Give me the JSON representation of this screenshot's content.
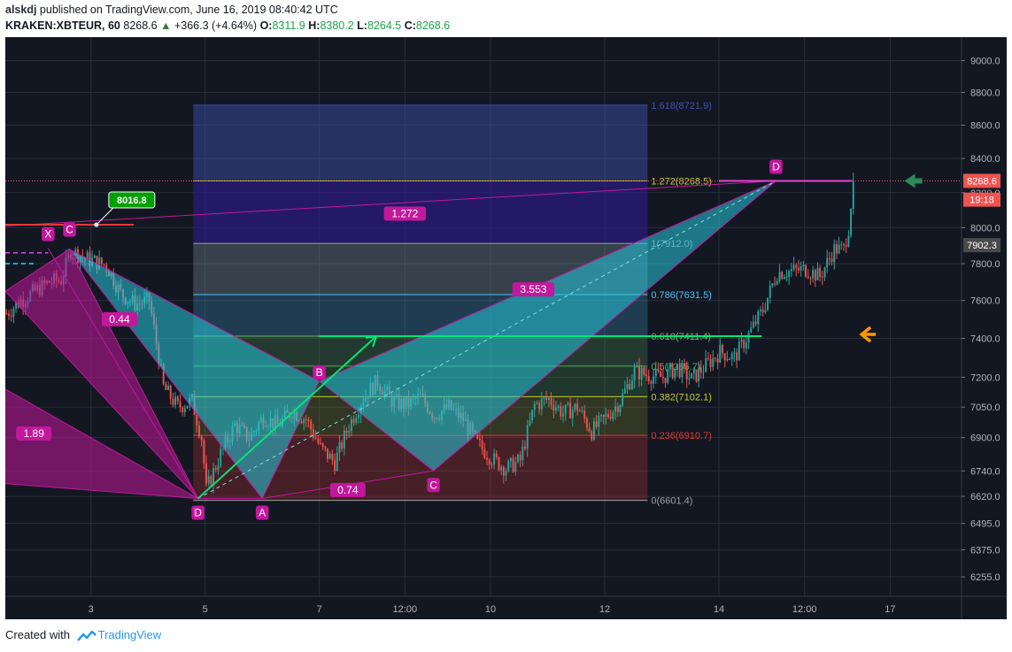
{
  "header": {
    "author": "alskdj",
    "published_text": "published on TradingView.com, June 16, 2019 08:40:42 UTC",
    "symbol_interval": "KRAKEN:XBTEUR, 60",
    "last_price": "8268.6",
    "change": "+366.3 (+4.64%)",
    "o_label": "O:",
    "o_value": "8311.9",
    "h_label": "H:",
    "h_value": "8380.2",
    "l_label": "L:",
    "l_value": "8264.5",
    "c_label": "C:",
    "c_value": "8268.6"
  },
  "footer": {
    "created_with": "Created with",
    "brand": "TradingView"
  },
  "colors": {
    "background": "#131722",
    "grid": "#2a2e39",
    "bull": "#26a69a",
    "bear": "#ef5350",
    "pattern_magenta": "#c2189b",
    "pattern_cyan": "#26c6da",
    "green_line": "#00e676",
    "orange_arrow": "#ff9800",
    "green_arrow": "#2e8b57"
  },
  "chart_data": {
    "type": "candlestick",
    "symbol": "KRAKEN:XBTEUR",
    "interval": "60",
    "scale": "log",
    "ylim": [
      6170,
      9150
    ],
    "y_ticks": [
      {
        "label": "9000.0",
        "value": 9000
      },
      {
        "label": "8800.0",
        "value": 8800
      },
      {
        "label": "8600.0",
        "value": 8600
      },
      {
        "label": "8400.0",
        "value": 8400
      },
      {
        "label": "8200.0",
        "value": 8200
      },
      {
        "label": "8000.0",
        "value": 8000
      },
      {
        "label": "7800.0",
        "value": 7800
      },
      {
        "label": "7600.0",
        "value": 7600
      },
      {
        "label": "7400.0",
        "value": 7400
      },
      {
        "label": "7200.0",
        "value": 7200
      },
      {
        "label": "7050.0",
        "value": 7050
      },
      {
        "label": "6900.0",
        "value": 6900
      },
      {
        "label": "6740.0",
        "value": 6740
      },
      {
        "label": "6620.0",
        "value": 6620
      },
      {
        "label": "6495.0",
        "value": 6495
      },
      {
        "label": "6375.0",
        "value": 6375
      },
      {
        "label": "6255.0",
        "value": 6255
      }
    ],
    "x_range": [
      "Jun 1 12:00",
      "Jun 18 06:00"
    ],
    "x_ticks": [
      {
        "label": "3",
        "t": "Jun 3 00:00"
      },
      {
        "label": "5",
        "t": "Jun 5 00:00"
      },
      {
        "label": "7",
        "t": "Jun 7 00:00"
      },
      {
        "label": "12:00",
        "t": "Jun 8 12:00"
      },
      {
        "label": "10",
        "t": "Jun 10 00:00"
      },
      {
        "label": "12",
        "t": "Jun 12 00:00"
      },
      {
        "label": "14",
        "t": "Jun 14 00:00"
      },
      {
        "label": "12:00",
        "t": "Jun 15 12:00"
      },
      {
        "label": "17",
        "t": "Jun 17 00:00"
      }
    ],
    "price_path": [
      [
        "Jun 1 12:00",
        7530
      ],
      [
        "Jun 1 18:00",
        7600
      ],
      [
        "Jun 2 00:00",
        7650
      ],
      [
        "Jun 2 06:00",
        7700
      ],
      [
        "Jun 2 11:00",
        7710
      ],
      [
        "Jun 2 15:00",
        7870
      ],
      [
        "Jun 2 21:00",
        7830
      ],
      [
        "Jun 3 06:00",
        7790
      ],
      [
        "Jun 3 12:00",
        7640
      ],
      [
        "Jun 3 18:00",
        7580
      ],
      [
        "Jun 4 00:00",
        7600
      ],
      [
        "Jun 4 06:00",
        7150
      ],
      [
        "Jun 4 12:00",
        7050
      ],
      [
        "Jun 4 18:00",
        7080
      ],
      [
        "Jun 4 22:00",
        6900
      ],
      [
        "Jun 5 00:00",
        6650
      ],
      [
        "Jun 5 06:00",
        6820
      ],
      [
        "Jun 5 12:00",
        6960
      ],
      [
        "Jun 5 18:00",
        6900
      ],
      [
        "Jun 6 00:00",
        7000
      ],
      [
        "Jun 6 06:00",
        6960
      ],
      [
        "Jun 6 12:00",
        7030
      ],
      [
        "Jun 6 18:00",
        6990
      ],
      [
        "Jun 7 00:00",
        6850
      ],
      [
        "Jun 7 06:00",
        6780
      ],
      [
        "Jun 7 12:00",
        6960
      ],
      [
        "Jun 7 18:00",
        7100
      ],
      [
        "Jun 8 00:00",
        7180
      ],
      [
        "Jun 8 06:00",
        7080
      ],
      [
        "Jun 8 12:00",
        7060
      ],
      [
        "Jun 8 18:00",
        7100
      ],
      [
        "Jun 9 00:00",
        7010
      ],
      [
        "Jun 9 06:00",
        7050
      ],
      [
        "Jun 9 12:00",
        6990
      ],
      [
        "Jun 9 18:00",
        6870
      ],
      [
        "Jun 10 00:00",
        6800
      ],
      [
        "Jun 10 06:00",
        6750
      ],
      [
        "Jun 10 12:00",
        6790
      ],
      [
        "Jun 10 18:00",
        7060
      ],
      [
        "Jun 11 00:00",
        7090
      ],
      [
        "Jun 11 06:00",
        7020
      ],
      [
        "Jun 11 12:00",
        7050
      ],
      [
        "Jun 11 18:00",
        6930
      ],
      [
        "Jun 12 00:00",
        7000
      ],
      [
        "Jun 12 06:00",
        7080
      ],
      [
        "Jun 12 12:00",
        7230
      ],
      [
        "Jun 12 18:00",
        7210
      ],
      [
        "Jun 13 00:00",
        7200
      ],
      [
        "Jun 13 06:00",
        7250
      ],
      [
        "Jun 13 12:00",
        7190
      ],
      [
        "Jun 13 18:00",
        7260
      ],
      [
        "Jun 14 00:00",
        7330
      ],
      [
        "Jun 14 06:00",
        7300
      ],
      [
        "Jun 14 12:00",
        7420
      ],
      [
        "Jun 14 18:00",
        7550
      ],
      [
        "Jun 15 00:00",
        7750
      ],
      [
        "Jun 15 06:00",
        7760
      ],
      [
        "Jun 15 12:00",
        7770
      ],
      [
        "Jun 15 18:00",
        7730
      ],
      [
        "Jun 16 00:00",
        7880
      ],
      [
        "Jun 16 04:00",
        7880
      ],
      [
        "Jun 16 06:00",
        8000
      ],
      [
        "Jun 16 08:00",
        8268.6
      ]
    ],
    "fib_levels": [
      {
        "label": "1.618(8721.9)",
        "value": 8721.9,
        "color": "#3f51b5",
        "fill": "rgba(63,81,181,0.45)"
      },
      {
        "label": "1.272(8268.5)",
        "value": 8268.5,
        "color": "#c0ca33",
        "fill": "rgba(49,27,146,0.6)"
      },
      {
        "label": "1(7912.0)",
        "value": 7912.0,
        "color": "#9e9e9e",
        "fill": "rgba(120,144,156,0.35)"
      },
      {
        "label": "0.786(7631.5)",
        "value": 7631.5,
        "color": "#4fc3f7",
        "fill": "rgba(79,195,247,0.22)"
      },
      {
        "label": "0.618(7411.4)",
        "value": 7411.4,
        "color": "#66bb6a",
        "fill": "rgba(102,187,106,0.22)"
      },
      {
        "label": "0.5(7256.7)",
        "value": 7256.7,
        "color": "#4caf50",
        "fill": "rgba(76,175,80,0.22)"
      },
      {
        "label": "0.382(7102.1)",
        "value": 7102.1,
        "color": "#c0ca33",
        "fill": "rgba(192,202,51,0.18)"
      },
      {
        "label": "0.236(6910.7)",
        "value": 6910.7,
        "color": "#e53935",
        "fill": "rgba(229,57,53,0.25)"
      },
      {
        "label": "0(6601.4)",
        "value": 6601.4,
        "color": "#9e9e9e",
        "fill": ""
      }
    ],
    "fib_range": {
      "start": "Jun 4 19:00",
      "end": "Jun 12 18:00"
    },
    "pattern1_points": [
      {
        "label": "X",
        "t": "Jun 2 06:00",
        "v": 7885
      },
      {
        "label": "C",
        "t": "Jun 2 15:00",
        "v": 7880
      },
      {
        "label": "D",
        "t": "Jun 4 21:00",
        "v": 6610
      }
    ],
    "pattern2_points": [
      {
        "label": "D",
        "t": "Jun 4 21:00",
        "v": 6610
      },
      {
        "label": "A",
        "t": "Jun 6 00:00",
        "v": 6610
      },
      {
        "label": "B",
        "t": "Jun 7 00:00",
        "v": 7180
      },
      {
        "label": "C",
        "t": "Jun 9 00:00",
        "v": 6740
      },
      {
        "label": "D",
        "t": "Jun 15 00:00",
        "v": 8268.5
      }
    ],
    "ratios": [
      {
        "label": "1.89",
        "t": "Jun 2 00:00",
        "v": 6920
      },
      {
        "label": "0.44",
        "t": "Jun 3 12:00",
        "v": 7500
      },
      {
        "label": "1.272",
        "t": "Jun 8 12:00",
        "v": 8080
      },
      {
        "label": "3.553",
        "t": "Jun 10 18:00",
        "v": 7660
      },
      {
        "label": "0.74",
        "t": "Jun 7 12:00",
        "v": 6650
      }
    ],
    "callout": {
      "label": "8016.8",
      "t": "Jun 3 06:00",
      "v": 8016.8
    },
    "price_tags": [
      {
        "label": "8268.6",
        "value": 8268.6,
        "color": "#ef5350"
      },
      {
        "label": "19:18",
        "value": 8160,
        "color": "#ef5350"
      },
      {
        "label": "7902.3",
        "value": 7902.3,
        "color": "#4a4a4a"
      }
    ],
    "green_level": {
      "value": 7411.4
    },
    "grid": true
  }
}
